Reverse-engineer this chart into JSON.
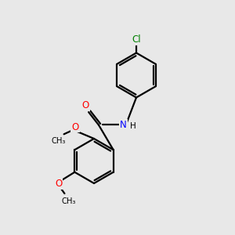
{
  "background_color": "#e8e8e8",
  "bond_color": "#000000",
  "atom_colors": {
    "Cl": "#008000",
    "N": "#0000ff",
    "O": "#ff0000",
    "H": "#000000",
    "C": "#000000"
  },
  "figsize": [
    3.0,
    3.0
  ],
  "dpi": 100
}
